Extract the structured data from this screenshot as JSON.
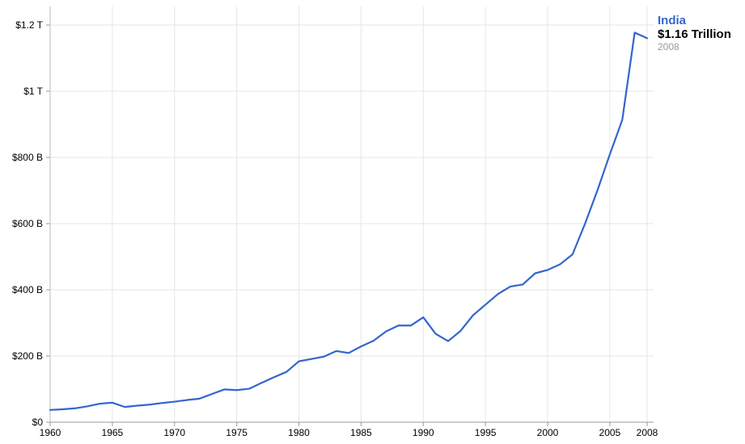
{
  "chart_data": {
    "type": "line",
    "x": [
      1960,
      1961,
      1962,
      1963,
      1964,
      1965,
      1966,
      1967,
      1968,
      1969,
      1970,
      1971,
      1972,
      1973,
      1974,
      1975,
      1976,
      1977,
      1978,
      1979,
      1980,
      1981,
      1982,
      1983,
      1984,
      1985,
      1986,
      1987,
      1988,
      1989,
      1990,
      1991,
      1992,
      1993,
      1994,
      1995,
      1996,
      1997,
      1998,
      1999,
      2000,
      2001,
      2002,
      2003,
      2004,
      2005,
      2006,
      2007,
      2008
    ],
    "series": [
      {
        "name": "India",
        "color": "#3366cc",
        "values": [
          37,
          39,
          42,
          48,
          56,
          59,
          46,
          50,
          53,
          58,
          62,
          67,
          71,
          85,
          99,
          97,
          101,
          119,
          136,
          152,
          184,
          191,
          198,
          215,
          209,
          229,
          246,
          274,
          292,
          292,
          317,
          267,
          245,
          276,
          323,
          355,
          387,
          410,
          416,
          450,
          460,
          477,
          507,
          599,
          700,
          809,
          913,
          1177,
          1160
        ]
      }
    ],
    "xlim": [
      1960,
      2008
    ],
    "ylim": [
      0,
      1200
    ],
    "x_tick_labels": [
      {
        "value": 1960,
        "label": "1960"
      },
      {
        "value": 1965,
        "label": "1965"
      },
      {
        "value": 1970,
        "label": "1970"
      },
      {
        "value": 1975,
        "label": "1975"
      },
      {
        "value": 1980,
        "label": "1980"
      },
      {
        "value": 1985,
        "label": "1985"
      },
      {
        "value": 1990,
        "label": "1990"
      },
      {
        "value": 1995,
        "label": "1995"
      },
      {
        "value": 2000,
        "label": "2000"
      },
      {
        "value": 2005,
        "label": "2005"
      },
      {
        "value": 2008,
        "label": "2008"
      }
    ],
    "y_tick_labels": [
      {
        "value": 0,
        "label": "$0"
      },
      {
        "value": 200,
        "label": "$200 B"
      },
      {
        "value": 400,
        "label": "$400 B"
      },
      {
        "value": 600,
        "label": "$600 B"
      },
      {
        "value": 800,
        "label": "$800 B"
      },
      {
        "value": 1000,
        "label": "$1 T"
      },
      {
        "value": 1200,
        "label": "$1.2 T"
      }
    ],
    "grid": true,
    "legend": {
      "placement": "top-right",
      "series_name": "India",
      "value_label": "$1.16 Trillion",
      "year_label": "2008"
    }
  }
}
